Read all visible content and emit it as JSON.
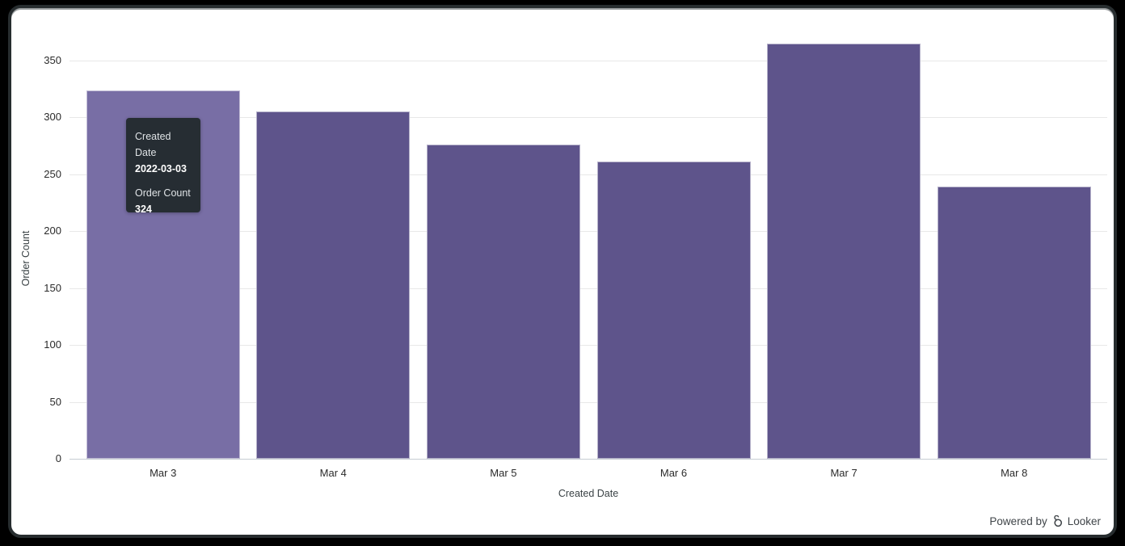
{
  "frame": {
    "background": "#000000",
    "window_border": "#272d2f",
    "window_background": "#ffffff"
  },
  "chart_data": {
    "type": "bar",
    "title": "",
    "categories": [
      "Mar 3",
      "Mar 4",
      "Mar 5",
      "Mar 6",
      "Mar 7",
      "Mar 8"
    ],
    "values": [
      324,
      305,
      276,
      261,
      365,
      239
    ],
    "xlabel": "Created Date",
    "ylabel": "Order Count",
    "ylim": [
      0,
      350
    ],
    "yticks": [
      0,
      50,
      100,
      150,
      200,
      250,
      300,
      350
    ],
    "grid": true,
    "legend": "none",
    "bar_color": "#5e548b",
    "bar_hover_color": "#786ea5",
    "hovered_index": 0
  },
  "tooltip": {
    "background": "#262d33",
    "dimension_label": "Created Date",
    "dimension_value": "2022-03-03",
    "measure_label": "Order Count",
    "measure_value": "324"
  },
  "footer": {
    "powered_by": "Powered by",
    "brand": "Looker"
  }
}
